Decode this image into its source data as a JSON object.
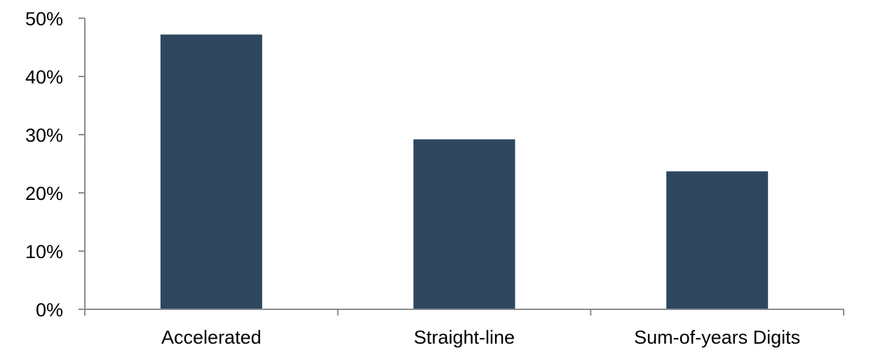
{
  "chart_data": {
    "type": "bar",
    "categories": [
      "Accelerated",
      "Straight-line",
      "Sum-of-years Digits"
    ],
    "values": [
      47.2,
      29.2,
      23.7
    ],
    "title": "",
    "xlabel": "",
    "ylabel": "",
    "ylim": [
      0,
      50
    ],
    "yticks": [
      "0%",
      "10%",
      "20%",
      "30%",
      "40%",
      "50%"
    ],
    "grid": false,
    "legend": "none",
    "colors": {
      "bar": "#2E475F",
      "axis": "#8C8C8C"
    }
  }
}
